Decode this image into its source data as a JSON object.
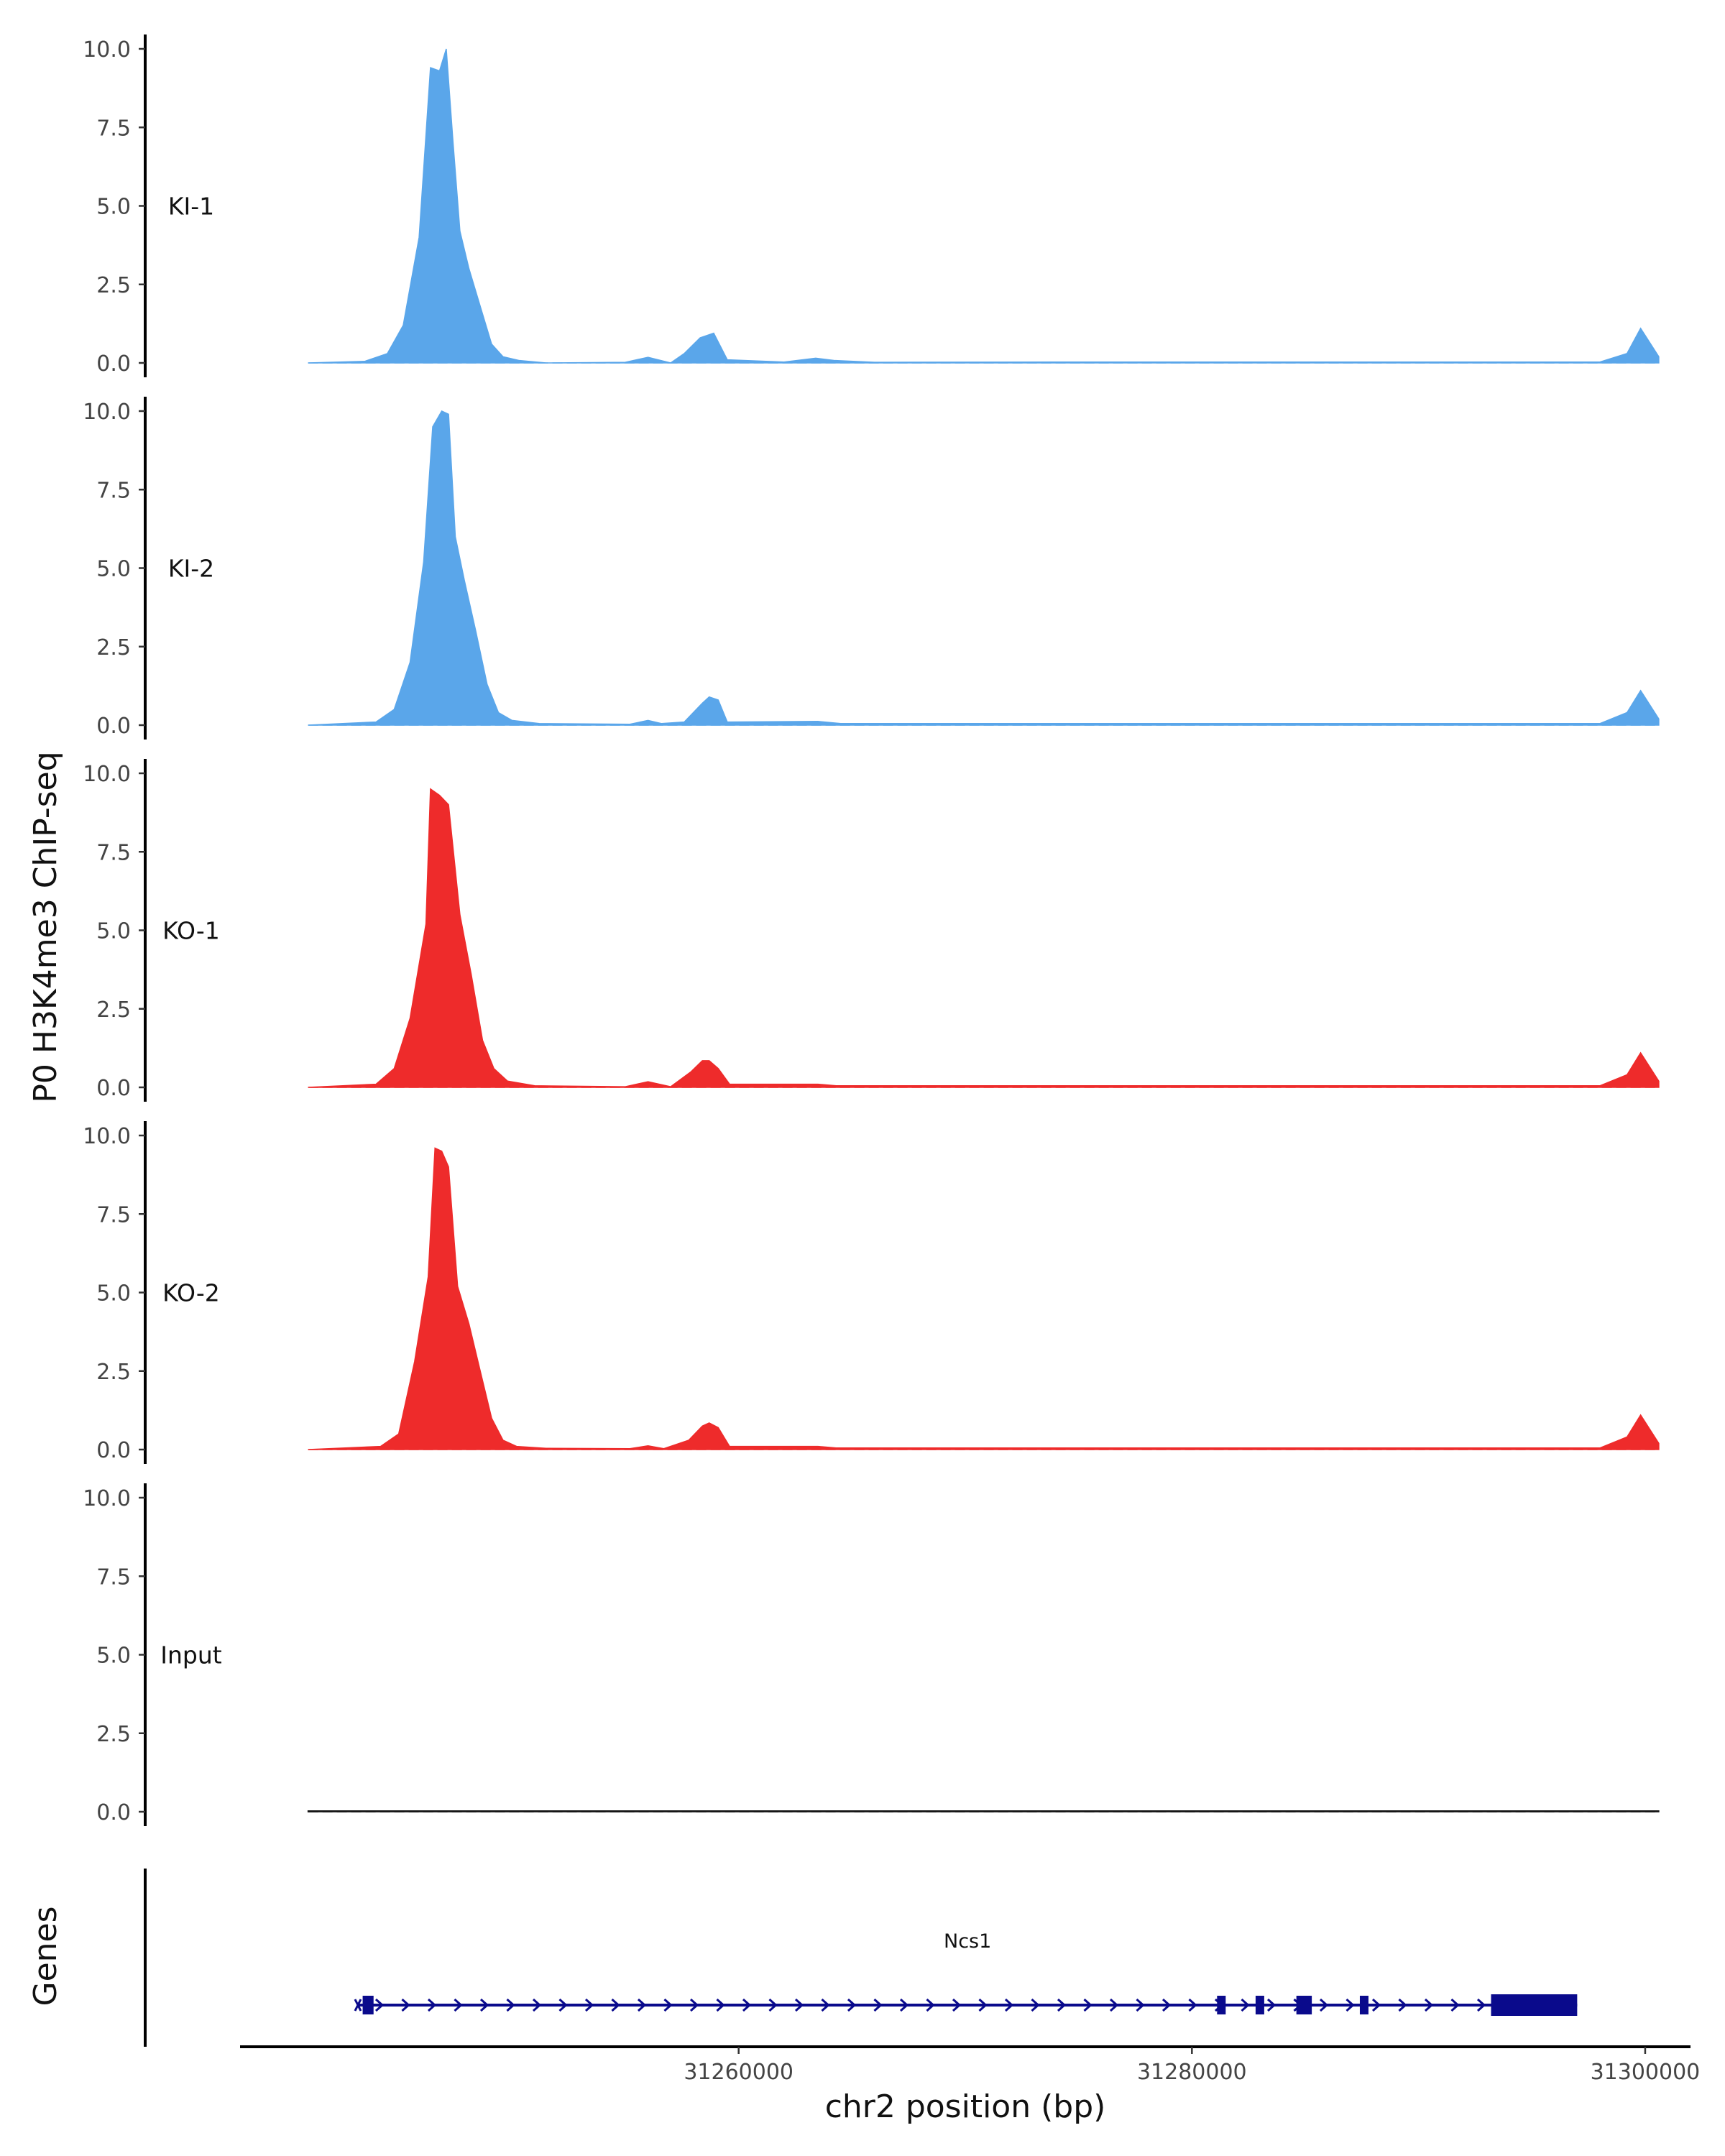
{
  "chart_data": {
    "type": "area",
    "ylabel": "P0 H3K4me3 ChIP-seq",
    "xlabel": "chr2 position (bp)",
    "ylim": [
      0,
      10
    ],
    "yticks": [
      "0.0",
      "2.5",
      "5.0",
      "7.5",
      "10.0"
    ],
    "xlim": [
      31238000,
      31302000
    ],
    "xticks": [
      31260000,
      31280000,
      31300000
    ],
    "xtick_labels": [
      "31260000",
      "31280000",
      "31300000"
    ],
    "series": [
      {
        "name": "KI-1",
        "color": "#5AA6EA",
        "x": [
          31241000,
          31243500,
          31244500,
          31245200,
          31245900,
          31246400,
          31246800,
          31247100,
          31247400,
          31247700,
          31248100,
          31248600,
          31249100,
          31249600,
          31250300,
          31251500,
          31255000,
          31256000,
          31257000,
          31257600,
          31258300,
          31258900,
          31259500,
          31262000,
          31263400,
          31264200,
          31266000,
          31274000,
          31298000,
          31299200,
          31299800,
          31300600
        ],
        "values": [
          0,
          0.05,
          0.3,
          1.2,
          4.0,
          9.4,
          9.3,
          10.0,
          7.0,
          4.2,
          3.0,
          1.8,
          0.6,
          0.2,
          0.08,
          0,
          0.02,
          0.18,
          0.0,
          0.3,
          0.8,
          0.95,
          0.1,
          0.03,
          0.15,
          0.08,
          0.02,
          0.03,
          0.03,
          0.3,
          1.1,
          0.2
        ]
      },
      {
        "name": "KI-2",
        "color": "#5AA6EA",
        "x": [
          31241000,
          31244000,
          31244800,
          31245500,
          31246100,
          31246500,
          31246900,
          31247200,
          31247500,
          31247900,
          31248400,
          31248900,
          31249400,
          31250000,
          31251200,
          31255200,
          31256000,
          31256600,
          31257600,
          31258400,
          31258700,
          31259100,
          31259500,
          31263500,
          31264500,
          31298000,
          31299200,
          31299800,
          31300600
        ],
        "values": [
          0,
          0.1,
          0.5,
          2.0,
          5.2,
          9.5,
          10.0,
          9.9,
          6.0,
          4.6,
          3.0,
          1.3,
          0.4,
          0.15,
          0.05,
          0.03,
          0.15,
          0.05,
          0.1,
          0.7,
          0.9,
          0.8,
          0.1,
          0.12,
          0.05,
          0.05,
          0.4,
          1.1,
          0.2
        ]
      },
      {
        "name": "KO-1",
        "color": "#EE2B2B",
        "x": [
          31241000,
          31244000,
          31244800,
          31245500,
          31246200,
          31246400,
          31246800,
          31247200,
          31247700,
          31248200,
          31248700,
          31249200,
          31249800,
          31251000,
          31255000,
          31256000,
          31257000,
          31257900,
          31258400,
          31258700,
          31259100,
          31259600,
          31263500,
          31264300,
          31298000,
          31299200,
          31299800,
          31300600
        ],
        "values": [
          0,
          0.1,
          0.6,
          2.2,
          5.2,
          9.5,
          9.3,
          9.0,
          5.5,
          3.6,
          1.5,
          0.6,
          0.2,
          0.05,
          0.02,
          0.18,
          0.02,
          0.5,
          0.85,
          0.85,
          0.6,
          0.1,
          0.1,
          0.05,
          0.05,
          0.4,
          1.1,
          0.2
        ]
      },
      {
        "name": "KO-2",
        "color": "#EE2B2B",
        "x": [
          31241000,
          31244200,
          31245000,
          31245700,
          31246300,
          31246600,
          31246900,
          31247200,
          31247600,
          31248100,
          31248600,
          31249100,
          31249600,
          31250200,
          31251500,
          31255200,
          31256000,
          31256700,
          31257800,
          31258400,
          31258700,
          31259100,
          31259600,
          31263500,
          31264300,
          31298000,
          31299200,
          31299800,
          31300600
        ],
        "values": [
          0,
          0.1,
          0.5,
          2.8,
          5.5,
          9.6,
          9.5,
          9.0,
          5.2,
          4.0,
          2.5,
          1.0,
          0.3,
          0.1,
          0.04,
          0.03,
          0.12,
          0.03,
          0.3,
          0.75,
          0.85,
          0.7,
          0.1,
          0.1,
          0.05,
          0.05,
          0.4,
          1.1,
          0.2
        ]
      },
      {
        "name": "Input",
        "color": "#111111",
        "x": [
          31241000,
          31300600
        ],
        "values": [
          0.03,
          0.03
        ]
      }
    ],
    "gene_track": {
      "title": "Genes",
      "gene": "Ncs1",
      "color": "#0A0A8C",
      "start": 31243200,
      "end": 31297000,
      "strand": "+",
      "thick_start": 31293200,
      "thick_end": 31297000,
      "exon_marks": [
        31243600,
        31243700,
        31281300,
        31283000,
        31284800,
        31285100,
        31287600
      ]
    }
  }
}
